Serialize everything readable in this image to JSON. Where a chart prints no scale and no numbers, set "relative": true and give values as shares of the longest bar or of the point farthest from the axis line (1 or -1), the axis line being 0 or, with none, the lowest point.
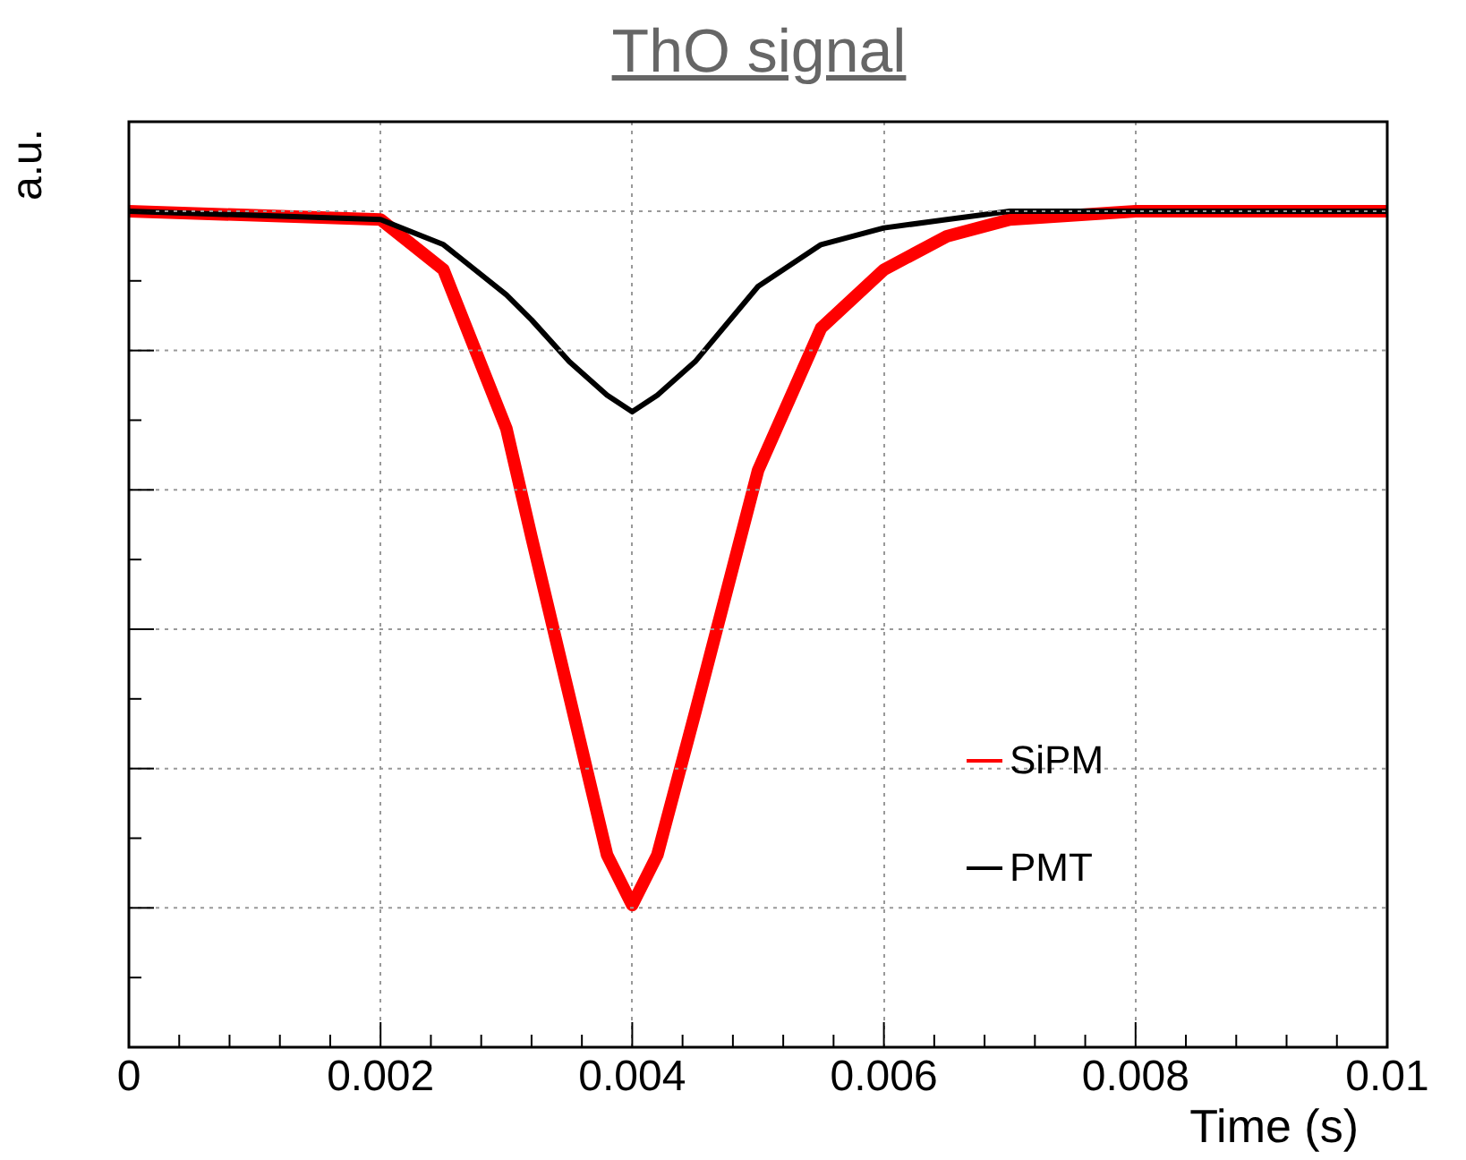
{
  "chart_data": {
    "type": "line",
    "title": "ThO signal",
    "xlabel": "Time (s)",
    "ylabel": "a.u.",
    "relative": true,
    "x": [
      0,
      0.002,
      0.0025,
      0.003,
      0.0032,
      0.0035,
      0.0038,
      0.004,
      0.0042,
      0.0045,
      0.005,
      0.0055,
      0.006,
      0.0065,
      0.007,
      0.008,
      0.009,
      0.01
    ],
    "xlim": [
      0,
      0.01
    ],
    "xticks": [
      0,
      0.002,
      0.004,
      0.006,
      0.008,
      0.01
    ],
    "grid": true,
    "legend": "bottom right",
    "marker": "none",
    "line_style": "solid",
    "series": [
      {
        "name": "SiPM",
        "color": "#ff0000",
        "values": [
          1.0,
          0.99,
          0.93,
          0.74,
          0.61,
          0.42,
          0.23,
          0.17,
          0.23,
          0.4,
          0.69,
          0.86,
          0.93,
          0.97,
          0.99,
          1.0,
          1.0,
          1.0
        ]
      },
      {
        "name": "PMT",
        "color": "#000000",
        "values": [
          1.0,
          0.99,
          0.96,
          0.9,
          0.87,
          0.82,
          0.78,
          0.76,
          0.78,
          0.82,
          0.91,
          0.96,
          0.98,
          0.99,
          1.0,
          1.0,
          1.0,
          1.0
        ]
      }
    ]
  }
}
